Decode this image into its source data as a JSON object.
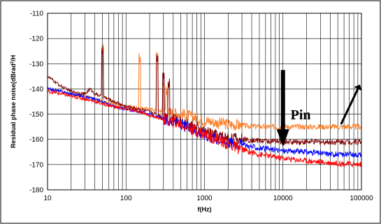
{
  "chart_data": {
    "type": "line",
    "xscale": "log",
    "xlim": [
      10,
      100000
    ],
    "ylim": [
      -180,
      -110
    ],
    "xlabel": "f(Hz)",
    "ylabel_main": "Residual phase noise(dBrad",
    "ylabel_sup": "2",
    "ylabel_tail": "/H",
    "xticks": [
      10,
      100,
      1000,
      10000,
      100000
    ],
    "xtick_labels": [
      "10",
      "100",
      "1000",
      "10000",
      "100000"
    ],
    "yticks": [
      -110,
      -120,
      -130,
      -140,
      -150,
      -160,
      -170,
      -180
    ],
    "ytick_labels": [
      "-110",
      "-120",
      "-130",
      "-140",
      "-150",
      "-160",
      "-170",
      "-180"
    ],
    "grid": {
      "x": "log-minor",
      "y": "major"
    },
    "annotation": {
      "text": "Pin"
    },
    "series": [
      {
        "color": "#ff7f27",
        "points": [
          [
            10,
            -140
          ],
          [
            15,
            -141
          ],
          [
            20,
            -142.5
          ],
          [
            30,
            -143
          ],
          [
            40,
            -144
          ],
          [
            50,
            -145
          ],
          [
            70,
            -146
          ],
          [
            100,
            -147
          ],
          [
            150,
            -147.5
          ],
          [
            200,
            -148
          ],
          [
            300,
            -149
          ],
          [
            500,
            -150
          ],
          [
            700,
            -151
          ],
          [
            1000,
            -152.5
          ],
          [
            1500,
            -153.5
          ],
          [
            2000,
            -154
          ],
          [
            3000,
            -154.5
          ],
          [
            5000,
            -155
          ],
          [
            10000,
            -155
          ],
          [
            20000,
            -155
          ],
          [
            50000,
            -155
          ],
          [
            100000,
            -155
          ]
        ],
        "spikes": [
          [
            50,
            -126
          ],
          [
            150,
            -130
          ],
          [
            250,
            -129
          ],
          [
            300,
            -141
          ],
          [
            330,
            -143
          ]
        ]
      },
      {
        "color": "#800000",
        "points": [
          [
            10,
            -135
          ],
          [
            15,
            -139
          ],
          [
            20,
            -141
          ],
          [
            30,
            -142
          ],
          [
            35,
            -140
          ],
          [
            40,
            -142
          ],
          [
            50,
            -143
          ],
          [
            70,
            -145
          ],
          [
            100,
            -147
          ],
          [
            150,
            -148
          ],
          [
            200,
            -149
          ],
          [
            300,
            -151
          ],
          [
            500,
            -153
          ],
          [
            700,
            -155
          ],
          [
            1000,
            -157
          ],
          [
            1500,
            -158.5
          ],
          [
            2000,
            -159.5
          ],
          [
            3000,
            -160
          ],
          [
            5000,
            -160.5
          ],
          [
            10000,
            -161
          ],
          [
            20000,
            -161
          ],
          [
            50000,
            -161
          ],
          [
            100000,
            -161
          ]
        ],
        "spikes": [
          [
            50,
            -127
          ],
          [
            250,
            -130
          ],
          [
            300,
            -137
          ],
          [
            350,
            -140
          ]
        ]
      },
      {
        "color": "#0000ff",
        "points": [
          [
            10,
            -140
          ],
          [
            15,
            -141
          ],
          [
            20,
            -142
          ],
          [
            30,
            -143
          ],
          [
            40,
            -144
          ],
          [
            50,
            -145
          ],
          [
            70,
            -147
          ],
          [
            100,
            -148
          ],
          [
            150,
            -149
          ],
          [
            200,
            -150
          ],
          [
            300,
            -152
          ],
          [
            500,
            -154
          ],
          [
            700,
            -156
          ],
          [
            1000,
            -158
          ],
          [
            1500,
            -160
          ],
          [
            2000,
            -161
          ],
          [
            3000,
            -162
          ],
          [
            5000,
            -163.5
          ],
          [
            10000,
            -164.5
          ],
          [
            20000,
            -165
          ],
          [
            50000,
            -166
          ],
          [
            100000,
            -166
          ]
        ],
        "spikes": []
      },
      {
        "color": "#ff0000",
        "points": [
          [
            10,
            -141
          ],
          [
            15,
            -142
          ],
          [
            20,
            -143
          ],
          [
            30,
            -144
          ],
          [
            40,
            -145
          ],
          [
            50,
            -146
          ],
          [
            70,
            -147
          ],
          [
            100,
            -148
          ],
          [
            150,
            -149
          ],
          [
            200,
            -150.5
          ],
          [
            300,
            -152
          ],
          [
            500,
            -154
          ],
          [
            700,
            -156
          ],
          [
            1000,
            -158
          ],
          [
            1500,
            -160
          ],
          [
            2000,
            -162
          ],
          [
            3000,
            -164
          ],
          [
            5000,
            -166
          ],
          [
            10000,
            -167.5
          ],
          [
            20000,
            -168.5
          ],
          [
            50000,
            -169.5
          ],
          [
            100000,
            -170
          ]
        ],
        "spikes": []
      }
    ]
  }
}
